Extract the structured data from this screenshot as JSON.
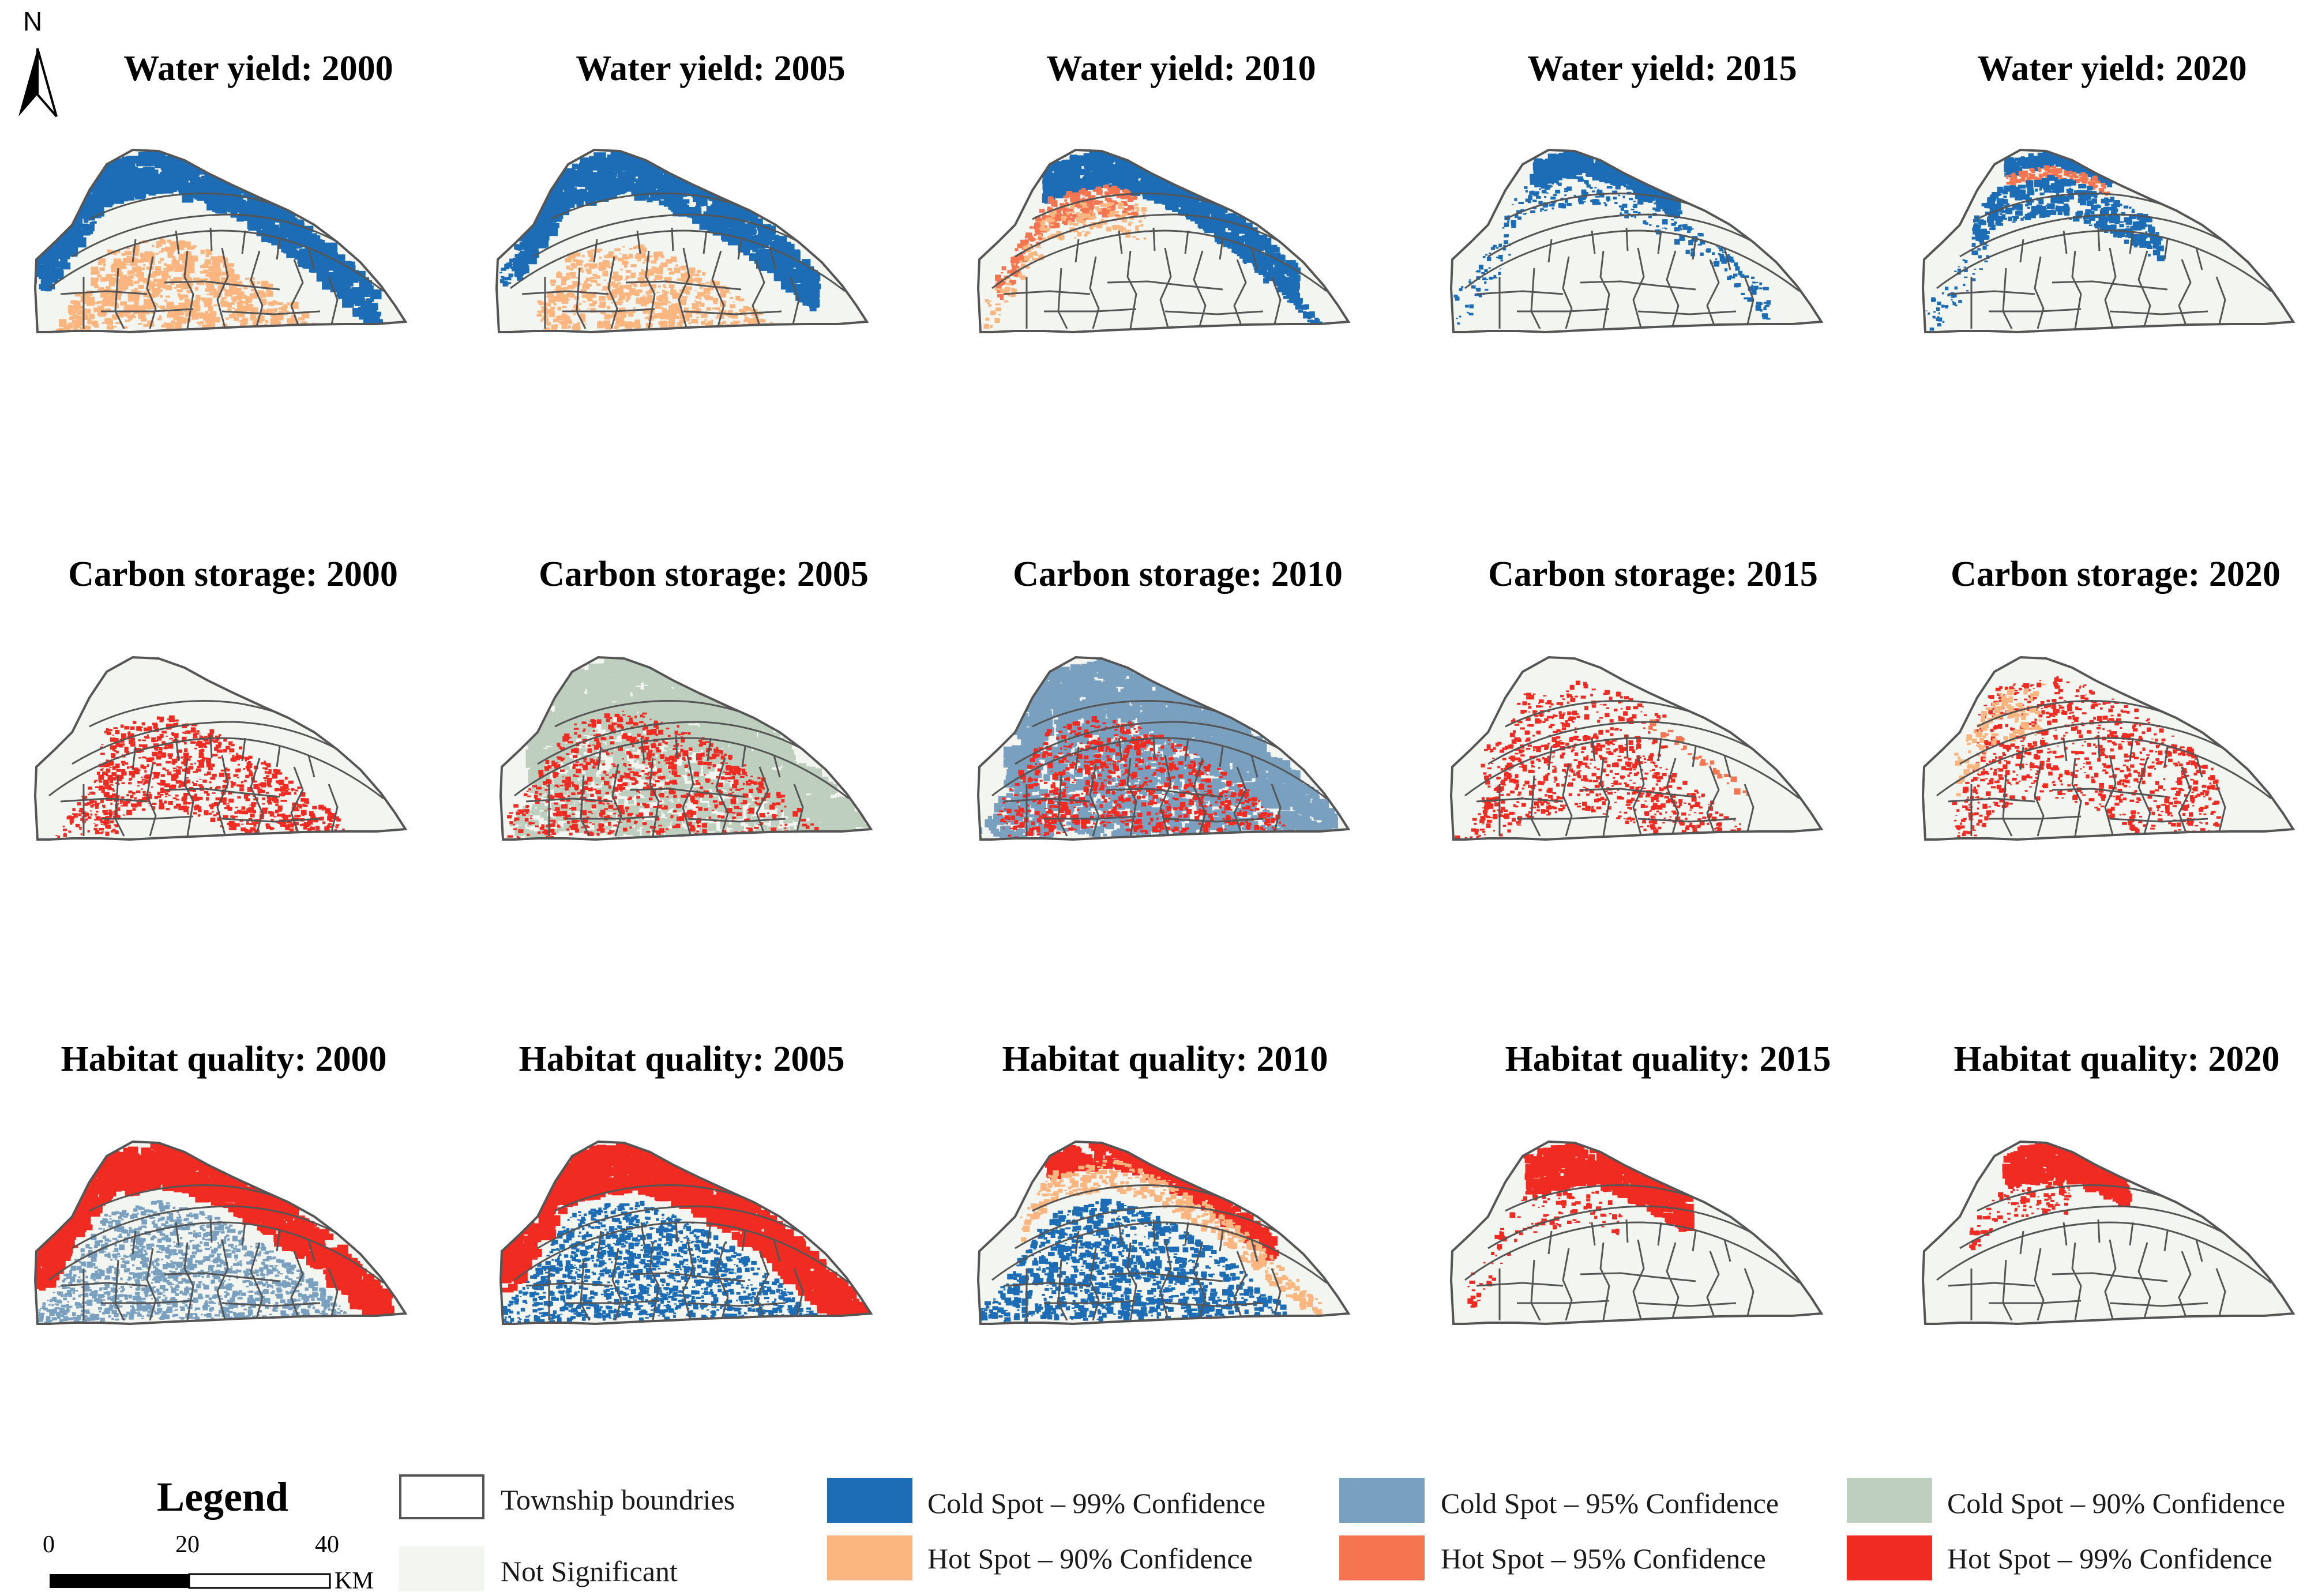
{
  "north_label": "N",
  "colors": {
    "cold99": "#1c6db5",
    "cold95": "#7aa0c0",
    "cold90": "#bfcfbf",
    "hot90": "#fbb57f",
    "hot95": "#f47550",
    "hot99": "#ef2b22",
    "not_significant": "#f3f5f0",
    "boundary": "#555555"
  },
  "panels": [
    {
      "title": "Water yield: 2000",
      "pattern": "wy2000"
    },
    {
      "title": "Water yield: 2005",
      "pattern": "wy2005"
    },
    {
      "title": "Water yield: 2010",
      "pattern": "wy2010"
    },
    {
      "title": "Water yield: 2015",
      "pattern": "wy2015"
    },
    {
      "title": "Water yield: 2020",
      "pattern": "wy2020"
    },
    {
      "title": "Carbon storage: 2000",
      "pattern": "cs2000"
    },
    {
      "title": "Carbon storage: 2005",
      "pattern": "cs2005"
    },
    {
      "title": "Carbon storage: 2010",
      "pattern": "cs2010"
    },
    {
      "title": "Carbon storage: 2015",
      "pattern": "cs2015"
    },
    {
      "title": "Carbon storage: 2020",
      "pattern": "cs2020"
    },
    {
      "title": "Habitat quality: 2000",
      "pattern": "hq2000"
    },
    {
      "title": "Habitat quality: 2005",
      "pattern": "hq2005"
    },
    {
      "title": "Habitat quality: 2010",
      "pattern": "hq2010"
    },
    {
      "title": "Habitat quality: 2015",
      "pattern": "hq2015"
    },
    {
      "title": "Habitat quality: 2020",
      "pattern": "hq2020"
    }
  ],
  "legend": {
    "title": "Legend",
    "township": "Township boundries",
    "not_significant": "Not Significant",
    "cold99": "Cold Spot – 99% Confidence",
    "cold95": "Cold Spot – 95% Confidence",
    "cold90": "Cold Spot – 90% Confidence",
    "hot90": "Hot Spot – 90% Confidence",
    "hot95": "Hot Spot – 95% Confidence",
    "hot99": "Hot Spot – 99% Confidence"
  },
  "scale": {
    "t0": "0",
    "t1": "20",
    "t2": "40",
    "unit": "KM"
  }
}
